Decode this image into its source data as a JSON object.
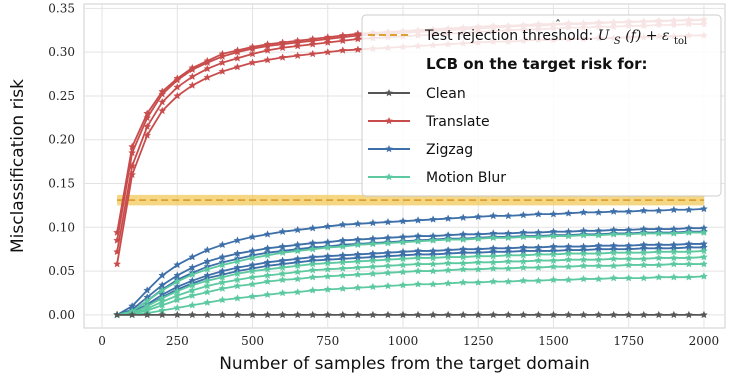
{
  "chart_data": {
    "type": "line",
    "xlabel": "Number of samples from the target domain",
    "ylabel": "Misclassification risk",
    "xlim": [
      -60,
      2070
    ],
    "ylim": [
      -0.015,
      0.355
    ],
    "xticks": [
      "0",
      "250",
      "500",
      "750",
      "1000",
      "1250",
      "1500",
      "1750",
      "2000"
    ],
    "yticks": [
      "0.00",
      "0.05",
      "0.10",
      "0.15",
      "0.20",
      "0.25",
      "0.30",
      "0.35"
    ],
    "grid": true,
    "legend_placement": "top-right",
    "x": [
      50,
      100,
      150,
      200,
      250,
      300,
      350,
      400,
      450,
      500,
      550,
      600,
      650,
      700,
      750,
      800,
      850,
      900,
      950,
      1000,
      1050,
      1100,
      1150,
      1200,
      1250,
      1300,
      1350,
      1400,
      1450,
      1500,
      1550,
      1600,
      1650,
      1700,
      1750,
      1800,
      1850,
      1900,
      1950,
      2000
    ],
    "threshold": {
      "name_prefix": "Test rejection threshold: ",
      "name_math_hat": "U",
      "name_math_sub": "S",
      "name_math_rest": "(f) + ε",
      "name_math_tol": "tol",
      "value": 0.131,
      "band": [
        0.125,
        0.137
      ],
      "x_range": [
        50,
        2000
      ],
      "color": "#dda033",
      "band_color": "#f0c85a"
    },
    "legend_title": "LCB on the target risk for:",
    "groups": [
      {
        "name": "Clean",
        "color": "#555555",
        "series": [
          [
            0,
            0,
            0,
            0,
            0,
            0,
            0,
            0,
            0,
            0,
            0,
            0,
            0,
            0,
            0,
            0,
            0,
            0,
            0,
            0,
            0,
            0,
            0,
            0,
            0,
            0,
            0,
            0,
            0,
            0,
            0,
            0,
            0,
            0,
            0,
            0,
            0,
            0,
            0,
            0
          ]
        ]
      },
      {
        "name": "Translate",
        "color": "#c94c4c",
        "series": [
          [
            0.094,
            0.192,
            0.23,
            0.255,
            0.27,
            0.282,
            0.29,
            0.298,
            0.302,
            0.306,
            0.309,
            0.311,
            0.313,
            0.315,
            0.317,
            0.319,
            0.321,
            0.322,
            0.323,
            0.324,
            0.325,
            0.326,
            0.327,
            0.328,
            0.329,
            0.33,
            0.33,
            0.331,
            0.332,
            0.332,
            0.333,
            0.333,
            0.334,
            0.334,
            0.335,
            0.335,
            0.336,
            0.336,
            0.337,
            0.337
          ],
          [
            0.085,
            0.185,
            0.225,
            0.252,
            0.268,
            0.28,
            0.288,
            0.295,
            0.3,
            0.304,
            0.307,
            0.309,
            0.311,
            0.313,
            0.315,
            0.317,
            0.319,
            0.32,
            0.321,
            0.322,
            0.323,
            0.324,
            0.325,
            0.326,
            0.327,
            0.328,
            0.329,
            0.33,
            0.33,
            0.331,
            0.332,
            0.332,
            0.333,
            0.334,
            0.334,
            0.335,
            0.335,
            0.336,
            0.336,
            0.337
          ],
          [
            0.072,
            0.17,
            0.215,
            0.243,
            0.26,
            0.272,
            0.281,
            0.288,
            0.293,
            0.298,
            0.302,
            0.305,
            0.307,
            0.309,
            0.311,
            0.313,
            0.315,
            0.316,
            0.317,
            0.318,
            0.319,
            0.32,
            0.321,
            0.322,
            0.323,
            0.324,
            0.325,
            0.326,
            0.326,
            0.327,
            0.328,
            0.328,
            0.329,
            0.329,
            0.33,
            0.33,
            0.331,
            0.331,
            0.332,
            0.332
          ],
          [
            0.058,
            0.16,
            0.205,
            0.233,
            0.25,
            0.262,
            0.271,
            0.278,
            0.283,
            0.288,
            0.291,
            0.294,
            0.296,
            0.298,
            0.3,
            0.302,
            0.303,
            0.304,
            0.305,
            0.306,
            0.307,
            0.308,
            0.309,
            0.31,
            0.311,
            0.312,
            0.312,
            0.313,
            0.314,
            0.314,
            0.315,
            0.315,
            0.316,
            0.316,
            0.317,
            0.317,
            0.318,
            0.318,
            0.319,
            0.319
          ]
        ]
      },
      {
        "name": "Zigzag",
        "color": "#3d6fa8",
        "series": [
          [
            0,
            0.01,
            0.028,
            0.045,
            0.057,
            0.066,
            0.074,
            0.08,
            0.085,
            0.089,
            0.092,
            0.095,
            0.097,
            0.099,
            0.101,
            0.103,
            0.104,
            0.105,
            0.106,
            0.107,
            0.108,
            0.109,
            0.11,
            0.111,
            0.112,
            0.113,
            0.113,
            0.114,
            0.115,
            0.115,
            0.116,
            0.117,
            0.117,
            0.118,
            0.118,
            0.119,
            0.119,
            0.12,
            0.12,
            0.121
          ],
          [
            0,
            0.006,
            0.02,
            0.034,
            0.045,
            0.054,
            0.061,
            0.066,
            0.07,
            0.073,
            0.076,
            0.078,
            0.08,
            0.082,
            0.083,
            0.085,
            0.086,
            0.087,
            0.088,
            0.089,
            0.09,
            0.09,
            0.091,
            0.092,
            0.092,
            0.093,
            0.093,
            0.094,
            0.094,
            0.095,
            0.095,
            0.096,
            0.096,
            0.097,
            0.097,
            0.098,
            0.098,
            0.098,
            0.099,
            0.099
          ],
          [
            0,
            0.004,
            0.016,
            0.029,
            0.04,
            0.048,
            0.055,
            0.06,
            0.064,
            0.068,
            0.071,
            0.073,
            0.075,
            0.077,
            0.078,
            0.08,
            0.081,
            0.082,
            0.083,
            0.084,
            0.085,
            0.086,
            0.087,
            0.087,
            0.088,
            0.089,
            0.089,
            0.09,
            0.09,
            0.091,
            0.091,
            0.092,
            0.092,
            0.093,
            0.093,
            0.094,
            0.094,
            0.094,
            0.095,
            0.095
          ],
          [
            0,
            0.003,
            0.012,
            0.023,
            0.032,
            0.039,
            0.045,
            0.05,
            0.054,
            0.057,
            0.06,
            0.062,
            0.064,
            0.066,
            0.067,
            0.068,
            0.069,
            0.07,
            0.071,
            0.072,
            0.073,
            0.073,
            0.074,
            0.075,
            0.075,
            0.076,
            0.076,
            0.077,
            0.077,
            0.078,
            0.078,
            0.078,
            0.079,
            0.079,
            0.079,
            0.08,
            0.08,
            0.08,
            0.081,
            0.081
          ],
          [
            0,
            0.002,
            0.01,
            0.02,
            0.029,
            0.036,
            0.042,
            0.046,
            0.05,
            0.053,
            0.056,
            0.058,
            0.06,
            0.062,
            0.063,
            0.064,
            0.065,
            0.066,
            0.067,
            0.068,
            0.069,
            0.069,
            0.07,
            0.071,
            0.071,
            0.072,
            0.072,
            0.073,
            0.073,
            0.073,
            0.074,
            0.074,
            0.075,
            0.075,
            0.075,
            0.076,
            0.076,
            0.076,
            0.077,
            0.077
          ]
        ]
      },
      {
        "name": "Motion Blur",
        "color": "#5cc9a0",
        "series": [
          [
            0,
            0.004,
            0.016,
            0.028,
            0.038,
            0.046,
            0.052,
            0.057,
            0.061,
            0.065,
            0.068,
            0.071,
            0.073,
            0.075,
            0.077,
            0.078,
            0.08,
            0.081,
            0.082,
            0.083,
            0.084,
            0.085,
            0.086,
            0.086,
            0.087,
            0.088,
            0.088,
            0.089,
            0.089,
            0.09,
            0.09,
            0.091,
            0.091,
            0.092,
            0.092,
            0.093,
            0.093,
            0.093,
            0.094,
            0.094
          ],
          [
            0,
            0.002,
            0.01,
            0.019,
            0.027,
            0.034,
            0.039,
            0.043,
            0.047,
            0.05,
            0.052,
            0.054,
            0.056,
            0.058,
            0.059,
            0.06,
            0.061,
            0.062,
            0.063,
            0.064,
            0.065,
            0.065,
            0.066,
            0.066,
            0.067,
            0.067,
            0.068,
            0.068,
            0.069,
            0.069,
            0.07,
            0.07,
            0.07,
            0.071,
            0.071,
            0.071,
            0.072,
            0.072,
            0.072,
            0.073
          ],
          [
            0,
            0.001,
            0.007,
            0.015,
            0.022,
            0.028,
            0.033,
            0.037,
            0.04,
            0.043,
            0.045,
            0.047,
            0.049,
            0.051,
            0.052,
            0.053,
            0.054,
            0.055,
            0.056,
            0.057,
            0.058,
            0.058,
            0.059,
            0.059,
            0.06,
            0.06,
            0.061,
            0.061,
            0.062,
            0.062,
            0.063,
            0.063,
            0.063,
            0.064,
            0.064,
            0.064,
            0.065,
            0.065,
            0.065,
            0.066
          ],
          [
            0,
            0.001,
            0.005,
            0.011,
            0.017,
            0.022,
            0.026,
            0.03,
            0.033,
            0.035,
            0.038,
            0.04,
            0.041,
            0.043,
            0.044,
            0.045,
            0.046,
            0.047,
            0.048,
            0.049,
            0.05,
            0.05,
            0.051,
            0.052,
            0.052,
            0.053,
            0.053,
            0.054,
            0.054,
            0.055,
            0.055,
            0.056,
            0.056,
            0.056,
            0.057,
            0.057,
            0.057,
            0.058,
            0.058,
            0.058
          ],
          [
            0,
            0.0,
            0.002,
            0.005,
            0.008,
            0.011,
            0.014,
            0.017,
            0.019,
            0.021,
            0.023,
            0.025,
            0.026,
            0.028,
            0.029,
            0.03,
            0.031,
            0.032,
            0.033,
            0.034,
            0.035,
            0.035,
            0.036,
            0.037,
            0.037,
            0.038,
            0.038,
            0.039,
            0.039,
            0.04,
            0.04,
            0.041,
            0.041,
            0.042,
            0.042,
            0.042,
            0.043,
            0.043,
            0.043,
            0.044
          ]
        ]
      }
    ]
  }
}
